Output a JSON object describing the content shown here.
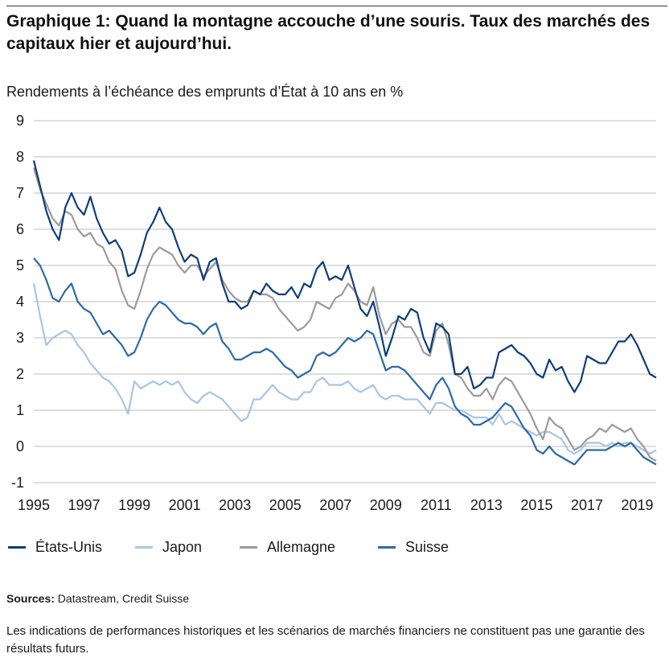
{
  "figure": {
    "title": "Graphique 1: Quand la montagne accouche d’une souris. Taux des marchés des capitaux hier et aujourd’hui.",
    "sources_label": "Sources:",
    "sources_text": " Datastream, Credit Suisse",
    "disclaimer": "Les indications de performances historiques et les scénarios de marchés financiers ne constituent pas une garantie des résultats futurs."
  },
  "chart_data": {
    "type": "line",
    "title": "",
    "ylabel": "Rendements à l’échéance des emprunts d’État à 10 ans en %",
    "xlabel": "",
    "xlim": [
      1995.0,
      2019.75
    ],
    "ylim": [
      -1,
      9
    ],
    "yticks": [
      9,
      8,
      7,
      6,
      5,
      4,
      3,
      2,
      1,
      0,
      -1
    ],
    "xticks": [
      "1995",
      "1997",
      "1999",
      "2001",
      "2003",
      "2005",
      "2007",
      "2009",
      "2011",
      "2013",
      "2015",
      "2017",
      "2019"
    ],
    "grid": "horizontal",
    "legend_position": "bottom",
    "series": [
      {
        "name": "États-Unis",
        "color": "#0d3d7a",
        "x": [
          1995.0,
          1995.25,
          1995.5,
          1995.75,
          1996.0,
          1996.25,
          1996.5,
          1996.75,
          1997.0,
          1997.25,
          1997.5,
          1997.75,
          1998.0,
          1998.25,
          1998.5,
          1998.75,
          1999.0,
          1999.25,
          1999.5,
          1999.75,
          2000.0,
          2000.25,
          2000.5,
          2000.75,
          2001.0,
          2001.25,
          2001.5,
          2001.75,
          2002.0,
          2002.25,
          2002.5,
          2002.75,
          2003.0,
          2003.25,
          2003.5,
          2003.75,
          2004.0,
          2004.25,
          2004.5,
          2004.75,
          2005.0,
          2005.25,
          2005.5,
          2005.75,
          2006.0,
          2006.25,
          2006.5,
          2006.75,
          2007.0,
          2007.25,
          2007.5,
          2007.75,
          2008.0,
          2008.25,
          2008.5,
          2008.75,
          2009.0,
          2009.25,
          2009.5,
          2009.75,
          2010.0,
          2010.25,
          2010.5,
          2010.75,
          2011.0,
          2011.25,
          2011.5,
          2011.75,
          2012.0,
          2012.25,
          2012.5,
          2012.75,
          2013.0,
          2013.25,
          2013.5,
          2013.75,
          2014.0,
          2014.25,
          2014.5,
          2014.75,
          2015.0,
          2015.25,
          2015.5,
          2015.75,
          2016.0,
          2016.25,
          2016.5,
          2016.75,
          2017.0,
          2017.25,
          2017.5,
          2017.75,
          2018.0,
          2018.25,
          2018.5,
          2018.75,
          2019.0,
          2019.25,
          2019.5,
          2019.75
        ],
        "y": [
          7.9,
          7.2,
          6.5,
          6.0,
          5.7,
          6.6,
          7.0,
          6.6,
          6.4,
          6.9,
          6.3,
          5.9,
          5.6,
          5.7,
          5.4,
          4.7,
          4.8,
          5.3,
          5.9,
          6.2,
          6.6,
          6.2,
          6.0,
          5.5,
          5.1,
          5.3,
          5.2,
          4.6,
          5.1,
          5.2,
          4.5,
          4.0,
          4.0,
          3.8,
          3.9,
          4.3,
          4.2,
          4.5,
          4.3,
          4.2,
          4.2,
          4.4,
          4.1,
          4.5,
          4.4,
          4.9,
          5.1,
          4.6,
          4.7,
          4.6,
          5.0,
          4.4,
          3.8,
          3.6,
          4.0,
          3.3,
          2.5,
          3.0,
          3.6,
          3.5,
          3.8,
          3.7,
          3.0,
          2.6,
          3.4,
          3.3,
          3.1,
          2.0,
          2.0,
          2.2,
          1.6,
          1.7,
          1.9,
          1.9,
          2.6,
          2.7,
          2.8,
          2.6,
          2.5,
          2.3,
          2.0,
          1.9,
          2.4,
          2.1,
          2.2,
          1.8,
          1.5,
          1.8,
          2.5,
          2.4,
          2.3,
          2.3,
          2.6,
          2.9,
          2.9,
          3.1,
          2.8,
          2.4,
          2.0,
          1.9
        ]
      },
      {
        "name": "Japon",
        "color": "#a9c6e3",
        "x": [
          1995.0,
          1995.25,
          1995.5,
          1995.75,
          1996.0,
          1996.25,
          1996.5,
          1996.75,
          1997.0,
          1997.25,
          1997.5,
          1997.75,
          1998.0,
          1998.25,
          1998.5,
          1998.75,
          1999.0,
          1999.25,
          1999.5,
          1999.75,
          2000.0,
          2000.25,
          2000.5,
          2000.75,
          2001.0,
          2001.25,
          2001.5,
          2001.75,
          2002.0,
          2002.25,
          2002.5,
          2002.75,
          2003.0,
          2003.25,
          2003.5,
          2003.75,
          2004.0,
          2004.25,
          2004.5,
          2004.75,
          2005.0,
          2005.25,
          2005.5,
          2005.75,
          2006.0,
          2006.25,
          2006.5,
          2006.75,
          2007.0,
          2007.25,
          2007.5,
          2007.75,
          2008.0,
          2008.25,
          2008.5,
          2008.75,
          2009.0,
          2009.25,
          2009.5,
          2009.75,
          2010.0,
          2010.25,
          2010.5,
          2010.75,
          2011.0,
          2011.25,
          2011.5,
          2011.75,
          2012.0,
          2012.25,
          2012.5,
          2012.75,
          2013.0,
          2013.25,
          2013.5,
          2013.75,
          2014.0,
          2014.25,
          2014.5,
          2014.75,
          2015.0,
          2015.25,
          2015.5,
          2015.75,
          2016.0,
          2016.25,
          2016.5,
          2016.75,
          2017.0,
          2017.25,
          2017.5,
          2017.75,
          2018.0,
          2018.25,
          2018.5,
          2018.75,
          2019.0,
          2019.25,
          2019.5,
          2019.75
        ],
        "y": [
          4.5,
          3.6,
          2.8,
          3.0,
          3.1,
          3.2,
          3.1,
          2.8,
          2.6,
          2.3,
          2.1,
          1.9,
          1.8,
          1.6,
          1.3,
          0.9,
          1.8,
          1.6,
          1.7,
          1.8,
          1.7,
          1.8,
          1.7,
          1.8,
          1.5,
          1.3,
          1.2,
          1.4,
          1.5,
          1.4,
          1.3,
          1.1,
          0.9,
          0.7,
          0.8,
          1.3,
          1.3,
          1.5,
          1.7,
          1.5,
          1.4,
          1.3,
          1.3,
          1.5,
          1.5,
          1.8,
          1.9,
          1.7,
          1.7,
          1.7,
          1.8,
          1.6,
          1.5,
          1.6,
          1.7,
          1.4,
          1.3,
          1.4,
          1.4,
          1.3,
          1.3,
          1.3,
          1.1,
          0.9,
          1.2,
          1.2,
          1.1,
          1.0,
          1.0,
          0.9,
          0.8,
          0.8,
          0.8,
          0.6,
          0.9,
          0.6,
          0.7,
          0.6,
          0.5,
          0.4,
          0.3,
          0.4,
          0.4,
          0.3,
          0.2,
          -0.1,
          -0.2,
          -0.1,
          0.1,
          0.1,
          0.1,
          0.0,
          0.1,
          0.0,
          0.1,
          0.1,
          0.0,
          -0.1,
          -0.2,
          -0.1
        ]
      },
      {
        "name": "Allemagne",
        "color": "#9b9b9b",
        "x": [
          1995.0,
          1995.25,
          1995.5,
          1995.75,
          1996.0,
          1996.25,
          1996.5,
          1996.75,
          1997.0,
          1997.25,
          1997.5,
          1997.75,
          1998.0,
          1998.25,
          1998.5,
          1998.75,
          1999.0,
          1999.25,
          1999.5,
          1999.75,
          2000.0,
          2000.25,
          2000.5,
          2000.75,
          2001.0,
          2001.25,
          2001.5,
          2001.75,
          2002.0,
          2002.25,
          2002.5,
          2002.75,
          2003.0,
          2003.25,
          2003.5,
          2003.75,
          2004.0,
          2004.25,
          2004.5,
          2004.75,
          2005.0,
          2005.25,
          2005.5,
          2005.75,
          2006.0,
          2006.25,
          2006.5,
          2006.75,
          2007.0,
          2007.25,
          2007.5,
          2007.75,
          2008.0,
          2008.25,
          2008.5,
          2008.75,
          2009.0,
          2009.25,
          2009.5,
          2009.75,
          2010.0,
          2010.25,
          2010.5,
          2010.75,
          2011.0,
          2011.25,
          2011.5,
          2011.75,
          2012.0,
          2012.25,
          2012.5,
          2012.75,
          2013.0,
          2013.25,
          2013.5,
          2013.75,
          2014.0,
          2014.25,
          2014.5,
          2014.75,
          2015.0,
          2015.25,
          2015.5,
          2015.75,
          2016.0,
          2016.25,
          2016.5,
          2016.75,
          2017.0,
          2017.25,
          2017.5,
          2017.75,
          2018.0,
          2018.25,
          2018.5,
          2018.75,
          2019.0,
          2019.25,
          2019.5,
          2019.75
        ],
        "y": [
          7.7,
          7.1,
          6.7,
          6.3,
          6.1,
          6.5,
          6.4,
          6.0,
          5.8,
          5.9,
          5.6,
          5.5,
          5.1,
          4.9,
          4.3,
          3.9,
          3.8,
          4.3,
          4.9,
          5.3,
          5.5,
          5.4,
          5.3,
          5.0,
          4.8,
          5.0,
          5.0,
          4.7,
          4.9,
          5.1,
          4.6,
          4.3,
          4.1,
          4.0,
          4.0,
          4.3,
          4.2,
          4.2,
          4.1,
          3.8,
          3.6,
          3.4,
          3.2,
          3.3,
          3.5,
          4.0,
          3.9,
          3.8,
          4.1,
          4.2,
          4.5,
          4.3,
          4.0,
          3.9,
          4.4,
          3.6,
          3.1,
          3.4,
          3.5,
          3.3,
          3.3,
          3.0,
          2.6,
          2.5,
          3.2,
          3.4,
          2.8,
          2.0,
          1.9,
          1.6,
          1.4,
          1.4,
          1.6,
          1.3,
          1.7,
          1.9,
          1.8,
          1.5,
          1.2,
          0.9,
          0.5,
          0.2,
          0.8,
          0.6,
          0.5,
          0.2,
          -0.1,
          0.0,
          0.2,
          0.3,
          0.5,
          0.4,
          0.6,
          0.5,
          0.4,
          0.5,
          0.2,
          0.0,
          -0.3,
          -0.4
        ]
      },
      {
        "name": "Suisse",
        "color": "#2c6aa8",
        "x": [
          1995.0,
          1995.25,
          1995.5,
          1995.75,
          1996.0,
          1996.25,
          1996.5,
          1996.75,
          1997.0,
          1997.25,
          1997.5,
          1997.75,
          1998.0,
          1998.25,
          1998.5,
          1998.75,
          1999.0,
          1999.25,
          1999.5,
          1999.75,
          2000.0,
          2000.25,
          2000.5,
          2000.75,
          2001.0,
          2001.25,
          2001.5,
          2001.75,
          2002.0,
          2002.25,
          2002.5,
          2002.75,
          2003.0,
          2003.25,
          2003.5,
          2003.75,
          2004.0,
          2004.25,
          2004.5,
          2004.75,
          2005.0,
          2005.25,
          2005.5,
          2005.75,
          2006.0,
          2006.25,
          2006.5,
          2006.75,
          2007.0,
          2007.25,
          2007.5,
          2007.75,
          2008.0,
          2008.25,
          2008.5,
          2008.75,
          2009.0,
          2009.25,
          2009.5,
          2009.75,
          2010.0,
          2010.25,
          2010.5,
          2010.75,
          2011.0,
          2011.25,
          2011.5,
          2011.75,
          2012.0,
          2012.25,
          2012.5,
          2012.75,
          2013.0,
          2013.25,
          2013.5,
          2013.75,
          2014.0,
          2014.25,
          2014.5,
          2014.75,
          2015.0,
          2015.25,
          2015.5,
          2015.75,
          2016.0,
          2016.25,
          2016.5,
          2016.75,
          2017.0,
          2017.25,
          2017.5,
          2017.75,
          2018.0,
          2018.25,
          2018.5,
          2018.75,
          2019.0,
          2019.25,
          2019.5,
          2019.75
        ],
        "y": [
          5.2,
          5.0,
          4.6,
          4.1,
          4.0,
          4.3,
          4.5,
          4.0,
          3.8,
          3.7,
          3.4,
          3.1,
          3.2,
          3.0,
          2.8,
          2.5,
          2.6,
          3.0,
          3.5,
          3.8,
          4.0,
          3.9,
          3.7,
          3.5,
          3.4,
          3.4,
          3.3,
          3.1,
          3.3,
          3.4,
          2.9,
          2.7,
          2.4,
          2.4,
          2.5,
          2.6,
          2.6,
          2.7,
          2.6,
          2.4,
          2.2,
          2.1,
          1.9,
          2.0,
          2.1,
          2.5,
          2.6,
          2.5,
          2.6,
          2.8,
          3.0,
          2.9,
          3.0,
          3.2,
          3.1,
          2.6,
          2.1,
          2.2,
          2.2,
          2.1,
          1.9,
          1.7,
          1.5,
          1.3,
          1.7,
          1.9,
          1.6,
          1.1,
          0.9,
          0.8,
          0.6,
          0.6,
          0.7,
          0.8,
          1.0,
          1.2,
          1.1,
          0.8,
          0.5,
          0.3,
          -0.1,
          -0.2,
          0.0,
          -0.2,
          -0.3,
          -0.4,
          -0.5,
          -0.3,
          -0.1,
          -0.1,
          -0.1,
          -0.1,
          0.0,
          0.1,
          0.0,
          0.1,
          -0.1,
          -0.3,
          -0.4,
          -0.5
        ]
      }
    ]
  }
}
